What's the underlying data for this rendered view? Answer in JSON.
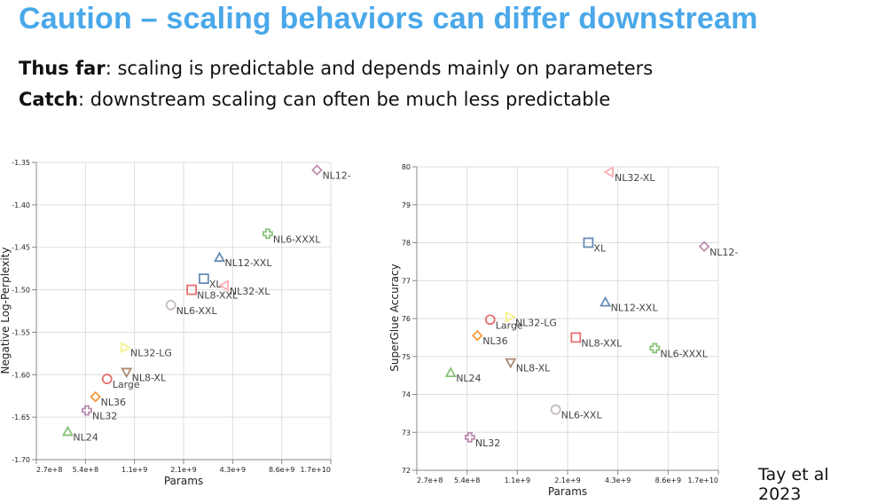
{
  "slide": {
    "title": "Caution – scaling behaviors can differ downstream",
    "line1_bold": "Thus far",
    "line1_rest": ": scaling is predictable and depends mainly on parameters",
    "line2_bold": "Catch",
    "line2_rest": ": downstream scaling can often be much less predictable",
    "citation": "Tay et al 2023"
  },
  "colors": {
    "title": "#4aa8ea",
    "blue": "#4c78a8",
    "red": "#e45756",
    "green": "#72b761",
    "purple": "#b279a2",
    "pink": "#ff9da6",
    "orange": "#f58518",
    "yellow": "#f5f07a",
    "brown": "#9d755d",
    "grey": "#bab0ac"
  },
  "chart_data": [
    {
      "type": "scatter",
      "title": "",
      "xlabel": "Params",
      "ylabel": "Negative Log-Perplexity",
      "xscale": "log2",
      "xlim": [
        270000000.0,
        17000000000.0
      ],
      "ylim": [
        -1.7,
        -1.35
      ],
      "x_ticks": [
        "2.7e+8",
        "5.4e+8",
        "1.1e+9",
        "2.1e+9",
        "4.3e+9",
        "8.6e+9",
        "1.7e+10"
      ],
      "y_ticks": [
        "-1.35",
        "-1.40",
        "-1.45",
        "-1.50",
        "-1.55",
        "-1.60",
        "-1.65",
        "-1.70"
      ],
      "grid": true,
      "points": [
        {
          "label": "NL12-",
          "x": 14000000000.0,
          "y": -1.359,
          "shape": "diamond",
          "color": "purple"
        },
        {
          "label": "NL6-XXXL",
          "x": 7000000000.0,
          "y": -1.434,
          "shape": "cross",
          "color": "green"
        },
        {
          "label": "NL12-XXL",
          "x": 3550000000.0,
          "y": -1.462,
          "shape": "triangle-up",
          "color": "blue"
        },
        {
          "label": "XL",
          "x": 2850000000.0,
          "y": -1.487,
          "shape": "square",
          "color": "blue"
        },
        {
          "label": "NL32-XL",
          "x": 3800000000.0,
          "y": -1.495,
          "shape": "triangle-left",
          "color": "pink"
        },
        {
          "label": "NL8-XXL",
          "x": 2400000000.0,
          "y": -1.5,
          "shape": "square",
          "color": "red"
        },
        {
          "label": "NL6-XXL",
          "x": 1790000000.0,
          "y": -1.518,
          "shape": "circle",
          "color": "grey"
        },
        {
          "label": "NL32-LG",
          "x": 940000000.0,
          "y": -1.568,
          "shape": "triangle-right",
          "color": "yellow"
        },
        {
          "label": "NL8-XL",
          "x": 960000000.0,
          "y": -1.597,
          "shape": "triangle-down",
          "color": "brown"
        },
        {
          "label": "Large",
          "x": 730000000.0,
          "y": -1.605,
          "shape": "circle",
          "color": "red"
        },
        {
          "label": "NL36",
          "x": 620000000.0,
          "y": -1.626,
          "shape": "diamond",
          "color": "orange"
        },
        {
          "label": "NL32",
          "x": 550000000.0,
          "y": -1.642,
          "shape": "cross",
          "color": "purple"
        },
        {
          "label": "NL24",
          "x": 420000000.0,
          "y": -1.667,
          "shape": "triangle-up",
          "color": "green"
        }
      ]
    },
    {
      "type": "scatter",
      "title": "",
      "xlabel": "Params",
      "ylabel": "SuperGlue Accuracy",
      "xscale": "log2",
      "xlim": [
        270000000.0,
        17000000000.0
      ],
      "ylim": [
        72,
        80
      ],
      "x_ticks": [
        "2.7e+8",
        "5.4e+8",
        "1.1e+9",
        "2.1e+9",
        "4.3e+9",
        "8.6e+9",
        "1.7e+10"
      ],
      "y_ticks": [
        "80",
        "79",
        "78",
        "77",
        "76",
        "75",
        "74",
        "73",
        "72"
      ],
      "grid": true,
      "points": [
        {
          "label": "NL32-XL",
          "x": 3800000000.0,
          "y": 79.86,
          "shape": "triangle-left",
          "color": "pink"
        },
        {
          "label": "XL",
          "x": 2850000000.0,
          "y": 78.0,
          "shape": "square",
          "color": "blue"
        },
        {
          "label": "NL12-",
          "x": 14000000000.0,
          "y": 77.9,
          "shape": "diamond",
          "color": "purple"
        },
        {
          "label": "NL12-XXL",
          "x": 3600000000.0,
          "y": 76.43,
          "shape": "triangle-up",
          "color": "blue"
        },
        {
          "label": "NL32-LG",
          "x": 970000000.0,
          "y": 76.04,
          "shape": "triangle-right",
          "color": "yellow"
        },
        {
          "label": "Large",
          "x": 740000000.0,
          "y": 75.97,
          "shape": "circle",
          "color": "red"
        },
        {
          "label": "NL36",
          "x": 620000000.0,
          "y": 75.55,
          "shape": "diamond",
          "color": "orange"
        },
        {
          "label": "NL8-XXL",
          "x": 2400000000.0,
          "y": 75.5,
          "shape": "square",
          "color": "red"
        },
        {
          "label": "NL6-XXXL",
          "x": 7100000000.0,
          "y": 75.22,
          "shape": "cross",
          "color": "green"
        },
        {
          "label": "NL8-XL",
          "x": 980000000.0,
          "y": 74.84,
          "shape": "triangle-down",
          "color": "brown"
        },
        {
          "label": "NL24",
          "x": 430000000.0,
          "y": 74.57,
          "shape": "triangle-up",
          "color": "green"
        },
        {
          "label": "NL6-XXL",
          "x": 1820000000.0,
          "y": 73.6,
          "shape": "circle",
          "color": "grey"
        },
        {
          "label": "NL32",
          "x": 560000000.0,
          "y": 72.87,
          "shape": "cross",
          "color": "purple"
        }
      ]
    }
  ]
}
